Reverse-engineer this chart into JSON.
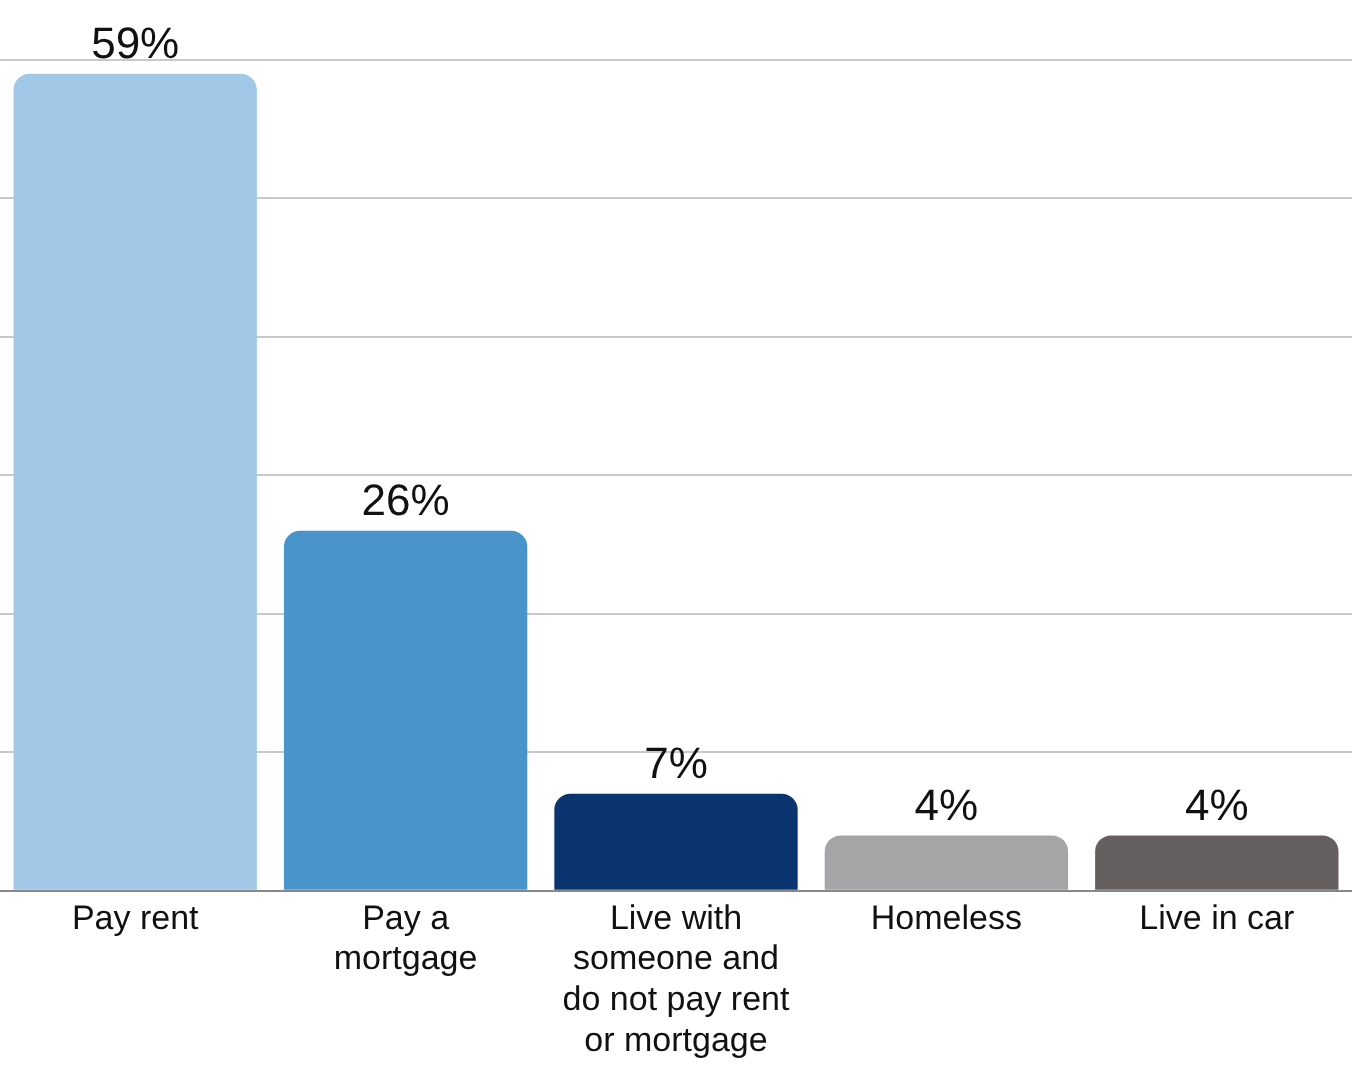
{
  "chart_data": {
    "type": "bar",
    "categories": [
      "Pay rent",
      "Pay a mortgage",
      "Live with someone and do not pay rent or mortgage",
      "Homeless",
      "Live in car"
    ],
    "values": [
      59,
      26,
      7,
      4,
      4
    ],
    "colors": [
      "#a2c8e8",
      "#4a94cc",
      "#0b3570",
      "#a5a5a7",
      "#665f5f"
    ],
    "ylim": [
      0,
      60
    ],
    "yticks": [
      {
        "value": 0,
        "label": null
      },
      {
        "value": 10,
        "label": null
      },
      {
        "value": 20,
        "label": null
      },
      {
        "value": 30,
        "label": null
      },
      {
        "value": 40,
        "label": null
      },
      {
        "value": 50,
        "label": null
      },
      {
        "value": 60,
        "label": null
      }
    ],
    "tick_labels": "x",
    "grid": "y",
    "legend": false,
    "value_labels": [
      "59%",
      "26%",
      "7%",
      "4%",
      "4%"
    ]
  }
}
